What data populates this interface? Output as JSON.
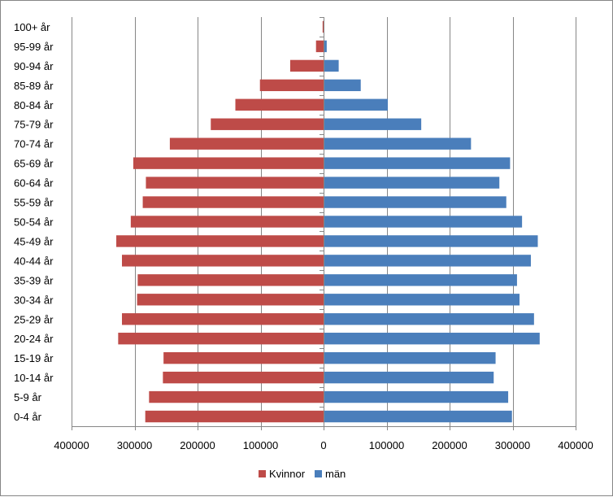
{
  "chart_data": {
    "type": "bar",
    "orientation": "horizontal-population-pyramid",
    "categories": [
      "0-4 år",
      "5-9 år",
      "10-14 år",
      "15-19 år",
      "20-24 år",
      "25-29 år",
      "30-34 år",
      "35-39 år",
      "40-44 år",
      "45-49 år",
      "50-54 år",
      "55-59 år",
      "60-64 år",
      "65-69 år",
      "70-74 år",
      "75-79 år",
      "80-84 år",
      "85-89 år",
      "90-94 år",
      "95-99 år",
      "100+ år"
    ],
    "series": [
      {
        "name": "Kvinnor",
        "color": "#BE4B48",
        "values": [
          283000,
          277000,
          255000,
          254000,
          326000,
          320000,
          296000,
          295000,
          320000,
          329000,
          306000,
          287000,
          282000,
          302000,
          244000,
          179000,
          140000,
          101000,
          53000,
          12000,
          1500
        ]
      },
      {
        "name": "män",
        "color": "#4A7EBB",
        "values": [
          299000,
          293000,
          270000,
          273000,
          343000,
          334000,
          311000,
          307000,
          329000,
          340000,
          315000,
          290000,
          279000,
          296000,
          234000,
          155000,
          102000,
          59000,
          24000,
          5000,
          700
        ]
      }
    ],
    "xlim": [
      -400000,
      400000
    ],
    "xticks": [
      {
        "value": -400000,
        "label": "400000"
      },
      {
        "value": -300000,
        "label": "300000"
      },
      {
        "value": -200000,
        "label": "200000"
      },
      {
        "value": -100000,
        "label": "100000"
      },
      {
        "value": 0,
        "label": "0"
      },
      {
        "value": 100000,
        "label": "100000"
      },
      {
        "value": 200000,
        "label": "200000"
      },
      {
        "value": 300000,
        "label": "300000"
      },
      {
        "value": 400000,
        "label": "400000"
      }
    ],
    "grid": "vertical",
    "legend_position": "bottom",
    "title": "",
    "xlabel": "",
    "ylabel": ""
  }
}
